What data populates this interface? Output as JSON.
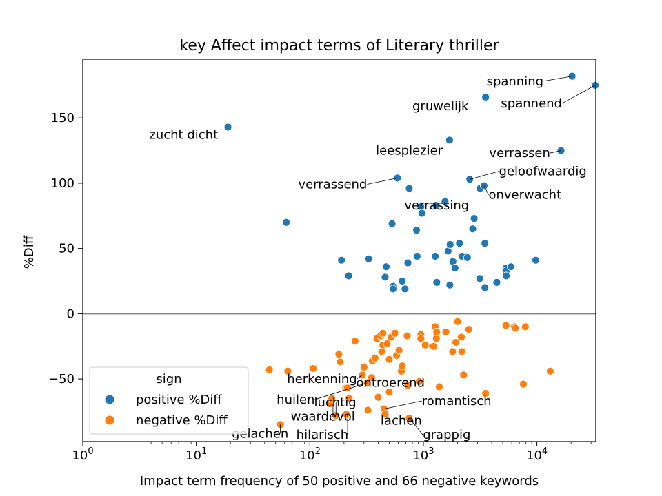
{
  "chart_data": {
    "type": "scatter",
    "title": "key Affect impact terms of Literary thriller",
    "xlabel": "Impact term frequency of 50 positive and 66 negative keywords",
    "ylabel": "%Diff",
    "xscale": "log",
    "xlim": [
      1,
      33000
    ],
    "ylim": [
      -98,
      195
    ],
    "x_ticks": [
      {
        "value": 1,
        "base": "10",
        "exp": "0"
      },
      {
        "value": 10,
        "base": "10",
        "exp": "1"
      },
      {
        "value": 100,
        "base": "10",
        "exp": "2"
      },
      {
        "value": 1000,
        "base": "10",
        "exp": "3"
      },
      {
        "value": 10000,
        "base": "10",
        "exp": "4"
      }
    ],
    "y_ticks": [
      {
        "value": -50,
        "label": "−50"
      },
      {
        "value": 0,
        "label": "0"
      },
      {
        "value": 50,
        "label": "50"
      },
      {
        "value": 100,
        "label": "100"
      },
      {
        "value": 150,
        "label": "150"
      }
    ],
    "zero_line": true,
    "grid": false,
    "legend": {
      "title": "sign",
      "placement": "lower-left",
      "entries": [
        {
          "label": "positive %Diff",
          "color": "#1f77b4"
        },
        {
          "label": "negative %Diff",
          "color": "#ff7f0e"
        }
      ]
    },
    "series": [
      {
        "name": "positive %Diff",
        "color": "#1f77b4",
        "points": [
          [
            19,
            143
          ],
          [
            62,
            70
          ],
          [
            190,
            41
          ],
          [
            220,
            29
          ],
          [
            330,
            42
          ],
          [
            460,
            28
          ],
          [
            470,
            36
          ],
          [
            530,
            69
          ],
          [
            540,
            21
          ],
          [
            540,
            19
          ],
          [
            590,
            104
          ],
          [
            650,
            25
          ],
          [
            690,
            19
          ],
          [
            730,
            39
          ],
          [
            750,
            96
          ],
          [
            870,
            64
          ],
          [
            880,
            44
          ],
          [
            950,
            82
          ],
          [
            970,
            77
          ],
          [
            1270,
            44
          ],
          [
            1290,
            83
          ],
          [
            1310,
            24
          ],
          [
            1550,
            86
          ],
          [
            1650,
            48
          ],
          [
            1700,
            133
          ],
          [
            1710,
            22
          ],
          [
            1720,
            53
          ],
          [
            1820,
            40
          ],
          [
            1900,
            35
          ],
          [
            2080,
            54
          ],
          [
            2190,
            44
          ],
          [
            2440,
            43
          ],
          [
            2560,
            103
          ],
          [
            2720,
            65
          ],
          [
            2800,
            73
          ],
          [
            3140,
            27
          ],
          [
            3160,
            96
          ],
          [
            3420,
            98
          ],
          [
            3480,
            20
          ],
          [
            3480,
            54
          ],
          [
            3530,
            166
          ],
          [
            4430,
            24
          ],
          [
            5340,
            35
          ],
          [
            5370,
            33
          ],
          [
            5360,
            29
          ],
          [
            5910,
            36
          ],
          [
            9770,
            41
          ],
          [
            16300,
            125
          ],
          [
            20400,
            182
          ],
          [
            32600,
            175
          ]
        ]
      },
      {
        "name": "negative %Diff",
        "color": "#ff7f0e",
        "points": [
          [
            44,
            -43
          ],
          [
            55,
            -85
          ],
          [
            64,
            -44
          ],
          [
            107,
            -42
          ],
          [
            150,
            -69
          ],
          [
            156,
            -65
          ],
          [
            170,
            -78
          ],
          [
            180,
            -31
          ],
          [
            185,
            -37
          ],
          [
            207,
            -57
          ],
          [
            210,
            -77
          ],
          [
            215,
            -57
          ],
          [
            222,
            -65
          ],
          [
            250,
            -21
          ],
          [
            290,
            -47
          ],
          [
            300,
            -41
          ],
          [
            320,
            -53
          ],
          [
            325,
            -74
          ],
          [
            350,
            -49
          ],
          [
            355,
            -36
          ],
          [
            375,
            -34
          ],
          [
            390,
            -19
          ],
          [
            400,
            -64
          ],
          [
            420,
            -17
          ],
          [
            430,
            -29
          ],
          [
            440,
            -24
          ],
          [
            440,
            -15
          ],
          [
            450,
            -73
          ],
          [
            460,
            -77
          ],
          [
            480,
            -23
          ],
          [
            500,
            -60
          ],
          [
            500,
            -35
          ],
          [
            520,
            -18
          ],
          [
            560,
            -15
          ],
          [
            580,
            -32
          ],
          [
            610,
            -28
          ],
          [
            640,
            -44
          ],
          [
            650,
            -40
          ],
          [
            720,
            -17
          ],
          [
            730,
            -55
          ],
          [
            750,
            -80
          ],
          [
            920,
            -52
          ],
          [
            950,
            -16
          ],
          [
            950,
            -19
          ],
          [
            1040,
            -24
          ],
          [
            1200,
            -25
          ],
          [
            1230,
            -25
          ],
          [
            1270,
            -10
          ],
          [
            1300,
            -19
          ],
          [
            1310,
            -14
          ],
          [
            1380,
            -56
          ],
          [
            1580,
            -14
          ],
          [
            1810,
            -29
          ],
          [
            1930,
            -22
          ],
          [
            2000,
            -6
          ],
          [
            2160,
            -18
          ],
          [
            2180,
            -29
          ],
          [
            2260,
            -47
          ],
          [
            2510,
            -12
          ],
          [
            3530,
            -61
          ],
          [
            5340,
            -9
          ],
          [
            6320,
            -10
          ],
          [
            6460,
            -11
          ],
          [
            7600,
            -54
          ],
          [
            7910,
            -10
          ],
          [
            13100,
            -44
          ]
        ]
      }
    ],
    "annotations": [
      {
        "text": "zucht dicht",
        "x": 19,
        "y": 143,
        "text_x": 3.85,
        "text_y": 134,
        "leader": false
      },
      {
        "text": "spanning",
        "x": 20400,
        "y": 182,
        "text_x": 3600,
        "text_y": 175,
        "leader": true
      },
      {
        "text": "spannend",
        "x": 32600,
        "y": 175,
        "text_x": 4820,
        "text_y": 158,
        "leader": true
      },
      {
        "text": "gruwelijk",
        "x": 3530,
        "y": 166,
        "text_x": 800,
        "text_y": 156,
        "leader": false
      },
      {
        "text": "leesplezier",
        "x": 1700,
        "y": 133,
        "text_x": 382,
        "text_y": 122,
        "leader": false
      },
      {
        "text": "verrassen",
        "x": 16300,
        "y": 125,
        "text_x": 3800,
        "text_y": 120,
        "leader": true
      },
      {
        "text": "geloofwaardig",
        "x": 2560,
        "y": 103,
        "text_x": 4630,
        "text_y": 106,
        "leader": true
      },
      {
        "text": "verrassend",
        "x": 590,
        "y": 104,
        "text_x": 79,
        "text_y": 96,
        "leader": true
      },
      {
        "text": "onverwacht",
        "x": 3420,
        "y": 98,
        "text_x": 3750,
        "text_y": 88,
        "leader": true
      },
      {
        "text": "verrassing",
        "x": 1550,
        "y": 86,
        "text_x": 680,
        "text_y": 80,
        "leader": true
      },
      {
        "text": "herkenning",
        "x": 290,
        "y": -47,
        "text_x": 63,
        "text_y": -53,
        "leader": true
      },
      {
        "text": "ontroerend",
        "x": 460,
        "y": -77,
        "text_x": 256,
        "text_y": -56,
        "leader": true
      },
      {
        "text": "huilen",
        "x": 320,
        "y": -53,
        "text_x": 51,
        "text_y": -69,
        "leader": true
      },
      {
        "text": "luchtig",
        "x": 170,
        "y": -78,
        "text_x": 109,
        "text_y": -71,
        "leader": true
      },
      {
        "text": "romantisch",
        "x": 450,
        "y": -73,
        "text_x": 970,
        "text_y": -70,
        "leader": true
      },
      {
        "text": "waardevol",
        "x": 160,
        "y": -69,
        "text_x": 68,
        "text_y": -82,
        "leader": true
      },
      {
        "text": "lachen",
        "x": 460,
        "y": -77,
        "text_x": 420,
        "text_y": -85,
        "leader": true
      },
      {
        "text": "gelachen",
        "x": 55,
        "y": -85,
        "text_x": 20.5,
        "text_y": -95,
        "leader": true
      },
      {
        "text": "hilarisch",
        "x": 215,
        "y": -77,
        "text_x": 76,
        "text_y": -96,
        "leader": true
      },
      {
        "text": "grappig",
        "x": 750,
        "y": -80,
        "text_x": 990,
        "text_y": -96,
        "leader": true
      }
    ]
  }
}
